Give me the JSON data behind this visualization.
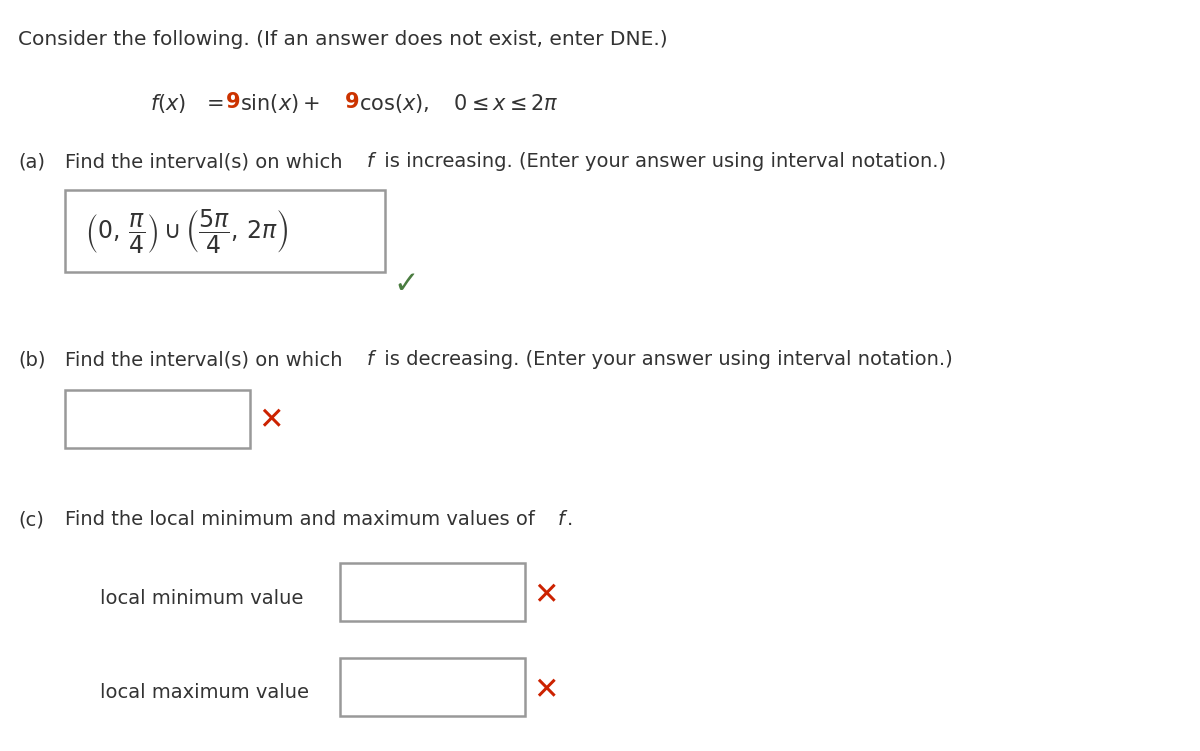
{
  "bg_color": "#ffffff",
  "text_color": "#333333",
  "red_color": "#cc3300",
  "check_color": "#4a7c40",
  "cross_color": "#cc2200",
  "box_edge_color": "#999999",
  "title": "Consider the following. (If an answer does not exist, enter DNE.)",
  "func_text": "f(x) = 9 sin(x) + 9 cos(x),    0 ≤ x ≤ 2π",
  "part_a_label": "(a)",
  "part_a_text": "Find the interval(s) on which f is increasing. (Enter your answer using interval notation.)",
  "part_b_label": "(b)",
  "part_b_text": "Find the interval(s) on which f is decreasing. (Enter your answer using interval notation.)",
  "part_c_label": "(c)",
  "part_c_text": "Find the local minimum and maximum values of f.",
  "min_label": "local minimum value",
  "max_label": "local maximum value",
  "font_size_title": 14.5,
  "font_size_body": 14,
  "font_size_func": 15,
  "font_size_answer": 17
}
